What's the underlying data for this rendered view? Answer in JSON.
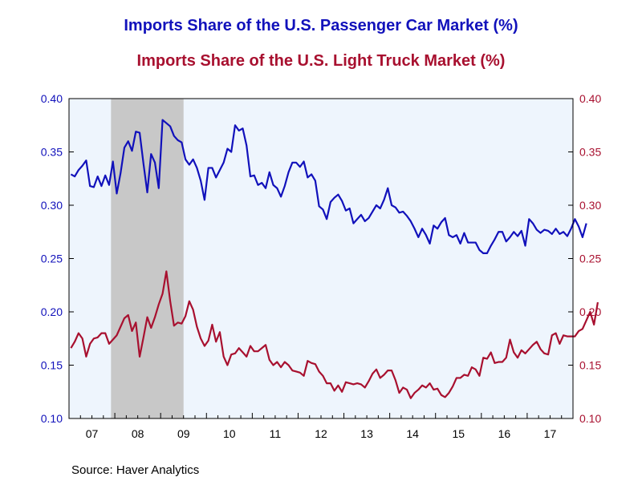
{
  "titles": {
    "line1": "Imports Share of the U.S. Passenger Car Market (%)",
    "line2": "Imports Share of the U.S. Light Truck Market (%)"
  },
  "source": "Source:  Haver Analytics",
  "colors": {
    "car": "#1111bb",
    "truck": "#a8102f",
    "plot_bg": "#eef5fd",
    "recession": "#c8c8c8",
    "axis": "#000000"
  },
  "chart_data": {
    "type": "line",
    "x_start": "2007-01",
    "frequency": "monthly",
    "x_tick_labels": [
      "07",
      "08",
      "09",
      "10",
      "11",
      "12",
      "13",
      "14",
      "15",
      "16",
      "17"
    ],
    "ylim_left": [
      0.1,
      0.4
    ],
    "ylim_right": [
      0.1,
      0.4
    ],
    "y_ticks_left": [
      "0.40",
      "0.35",
      "0.30",
      "0.25",
      "0.20",
      "0.15",
      "0.10"
    ],
    "y_ticks_right": [
      "0.40",
      "0.35",
      "0.30",
      "0.25",
      "0.20",
      "0.15",
      "0.10"
    ],
    "shaded_period": {
      "start": "2007-12",
      "end": "2009-06",
      "label": "recession"
    },
    "grid": false,
    "series": [
      {
        "name": "Imports Share of the U.S. Passenger Car Market (%)",
        "axis": "left",
        "values": [
          0.329,
          0.327,
          0.333,
          0.337,
          0.342,
          0.318,
          0.317,
          0.327,
          0.318,
          0.328,
          0.319,
          0.341,
          0.311,
          0.33,
          0.354,
          0.36,
          0.351,
          0.369,
          0.368,
          0.339,
          0.312,
          0.348,
          0.34,
          0.316,
          0.38,
          0.377,
          0.374,
          0.365,
          0.361,
          0.359,
          0.343,
          0.338,
          0.343,
          0.335,
          0.323,
          0.305,
          0.335,
          0.335,
          0.326,
          0.333,
          0.34,
          0.353,
          0.35,
          0.375,
          0.37,
          0.372,
          0.356,
          0.327,
          0.328,
          0.319,
          0.321,
          0.316,
          0.331,
          0.319,
          0.316,
          0.308,
          0.318,
          0.331,
          0.34,
          0.34,
          0.336,
          0.341,
          0.326,
          0.329,
          0.323,
          0.299,
          0.296,
          0.287,
          0.303,
          0.307,
          0.31,
          0.304,
          0.295,
          0.297,
          0.283,
          0.287,
          0.291,
          0.285,
          0.288,
          0.294,
          0.3,
          0.297,
          0.305,
          0.316,
          0.3,
          0.298,
          0.293,
          0.294,
          0.29,
          0.285,
          0.278,
          0.27,
          0.278,
          0.272,
          0.264,
          0.281,
          0.278,
          0.284,
          0.288,
          0.272,
          0.27,
          0.272,
          0.264,
          0.274,
          0.265,
          0.265,
          0.265,
          0.258,
          0.255,
          0.255,
          0.262,
          0.268,
          0.275,
          0.275,
          0.266,
          0.27,
          0.275,
          0.271,
          0.276,
          0.262,
          0.287,
          0.283,
          0.277,
          0.274,
          0.277,
          0.276,
          0.273,
          0.278,
          0.273,
          0.275,
          0.271,
          0.278,
          0.287,
          0.28,
          0.27,
          0.283
        ]
      },
      {
        "name": "Imports Share of the U.S. Light Truck Market (%)",
        "axis": "right",
        "values": [
          0.166,
          0.172,
          0.18,
          0.175,
          0.158,
          0.17,
          0.175,
          0.176,
          0.18,
          0.18,
          0.17,
          0.174,
          0.178,
          0.186,
          0.194,
          0.197,
          0.182,
          0.19,
          0.158,
          0.176,
          0.195,
          0.185,
          0.195,
          0.207,
          0.217,
          0.238,
          0.21,
          0.187,
          0.19,
          0.189,
          0.196,
          0.21,
          0.202,
          0.186,
          0.175,
          0.168,
          0.173,
          0.188,
          0.172,
          0.181,
          0.158,
          0.15,
          0.16,
          0.161,
          0.166,
          0.162,
          0.158,
          0.168,
          0.163,
          0.163,
          0.166,
          0.169,
          0.155,
          0.15,
          0.153,
          0.148,
          0.153,
          0.15,
          0.145,
          0.144,
          0.143,
          0.14,
          0.154,
          0.152,
          0.151,
          0.144,
          0.14,
          0.133,
          0.133,
          0.126,
          0.131,
          0.125,
          0.134,
          0.133,
          0.132,
          0.133,
          0.132,
          0.129,
          0.135,
          0.142,
          0.146,
          0.138,
          0.141,
          0.145,
          0.145,
          0.136,
          0.124,
          0.129,
          0.127,
          0.119,
          0.124,
          0.127,
          0.131,
          0.129,
          0.133,
          0.127,
          0.128,
          0.122,
          0.12,
          0.124,
          0.13,
          0.138,
          0.138,
          0.141,
          0.14,
          0.148,
          0.146,
          0.14,
          0.157,
          0.156,
          0.162,
          0.152,
          0.153,
          0.153,
          0.157,
          0.174,
          0.162,
          0.157,
          0.164,
          0.161,
          0.165,
          0.169,
          0.172,
          0.165,
          0.161,
          0.16,
          0.178,
          0.18,
          0.17,
          0.178,
          0.177,
          0.177,
          0.177,
          0.182,
          0.184,
          0.192,
          0.2,
          0.188,
          0.209
        ]
      }
    ]
  }
}
